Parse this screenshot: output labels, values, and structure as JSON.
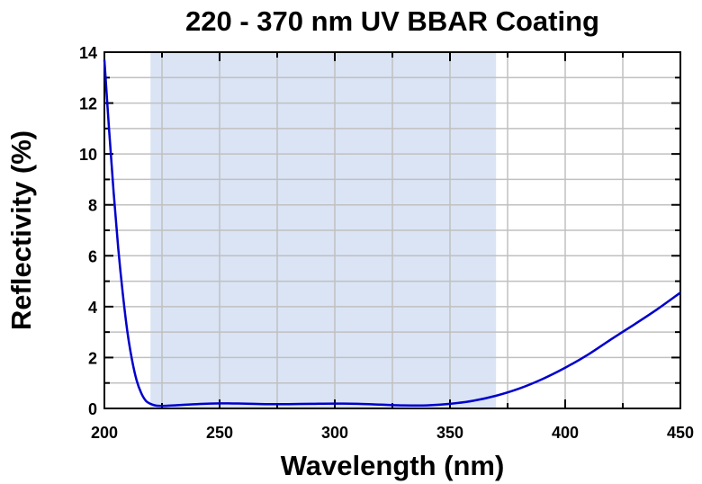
{
  "chart_data": {
    "type": "line",
    "title": "220 - 370 nm UV BBAR Coating",
    "xlabel": "Wavelength (nm)",
    "ylabel": "Reflectivity (%)",
    "xlim": [
      200,
      450
    ],
    "ylim": [
      0,
      14
    ],
    "xticks": [
      200,
      250,
      300,
      350,
      400,
      450
    ],
    "yticks": [
      0,
      2,
      4,
      6,
      8,
      10,
      12,
      14
    ],
    "grid": true,
    "highlight_band": [
      220,
      370
    ],
    "colors": {
      "line": "#0000cc",
      "band": "#dae4f5",
      "grid": "#c0c0c0",
      "axis": "#000000"
    },
    "series": [
      {
        "x": [
          200,
          202,
          204,
          206,
          208,
          210,
          212,
          214,
          216,
          218,
          220,
          222,
          224,
          226,
          230,
          240,
          250,
          260,
          270,
          280,
          290,
          300,
          310,
          320,
          330,
          340,
          350,
          360,
          370,
          380,
          390,
          400,
          410,
          420,
          430,
          440,
          450
        ],
        "values": [
          13.7,
          11.0,
          8.5,
          6.3,
          4.5,
          3.0,
          1.9,
          1.1,
          0.6,
          0.3,
          0.18,
          0.12,
          0.1,
          0.1,
          0.12,
          0.17,
          0.2,
          0.19,
          0.17,
          0.17,
          0.18,
          0.19,
          0.18,
          0.15,
          0.12,
          0.12,
          0.18,
          0.3,
          0.5,
          0.78,
          1.15,
          1.6,
          2.12,
          2.72,
          3.3,
          3.9,
          4.55
        ]
      }
    ]
  }
}
